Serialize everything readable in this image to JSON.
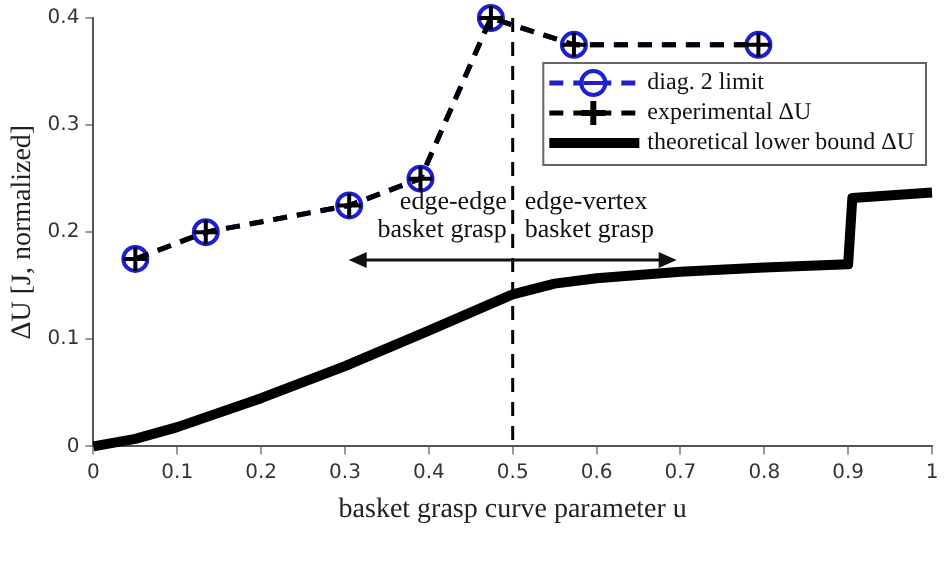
{
  "chart_data": {
    "type": "line",
    "xlabel": "basket grasp curve parameter u",
    "ylabel": "ΔU [J, normalized]",
    "xlim": [
      0,
      1
    ],
    "xticks": [
      0,
      0.1,
      0.2,
      0.3,
      0.4,
      0.5,
      0.6,
      0.7,
      0.8,
      0.9,
      1
    ],
    "ylim": [
      0,
      0.4
    ],
    "yticks": [
      0,
      0.1,
      0.2,
      0.3,
      0.4
    ],
    "grid": false,
    "legend": "top right",
    "series": [
      {
        "name": "diag. 2 limit",
        "color": "#1f1fd0",
        "marker": "circle",
        "line_style": "dashed",
        "x": [
          0.05,
          0.134,
          0.305,
          0.39,
          0.474,
          0.573,
          0.793
        ],
        "values": [
          0.175,
          0.2,
          0.225,
          0.25,
          0.4,
          0.375,
          0.375
        ]
      },
      {
        "name": "experimental ΔU",
        "color": "#000000",
        "marker": "cross",
        "line_style": "dashed",
        "x": [
          0.05,
          0.134,
          0.305,
          0.39,
          0.474,
          0.573,
          0.793
        ],
        "values": [
          0.175,
          0.2,
          0.225,
          0.25,
          0.4,
          0.375,
          0.375
        ]
      },
      {
        "name": "theoretical lower bound ΔU",
        "color": "#000000",
        "marker": "none",
        "line_style": "solid",
        "x": [
          0,
          0.05,
          0.1,
          0.2,
          0.3,
          0.4,
          0.5,
          0.55,
          0.6,
          0.7,
          0.8,
          0.9,
          0.905,
          1
        ],
        "values": [
          0,
          0.007,
          0.018,
          0.045,
          0.075,
          0.108,
          0.142,
          0.152,
          0.157,
          0.163,
          0.167,
          0.17,
          0.232,
          0.237
        ]
      }
    ],
    "ref_lines": [
      {
        "axis": "x",
        "value": 0.5,
        "color": "#000000",
        "line_style": "dashed"
      }
    ],
    "annotations": [
      "edge-edge\nbasket grasp",
      "edge-vertex\nbasket grasp"
    ]
  }
}
